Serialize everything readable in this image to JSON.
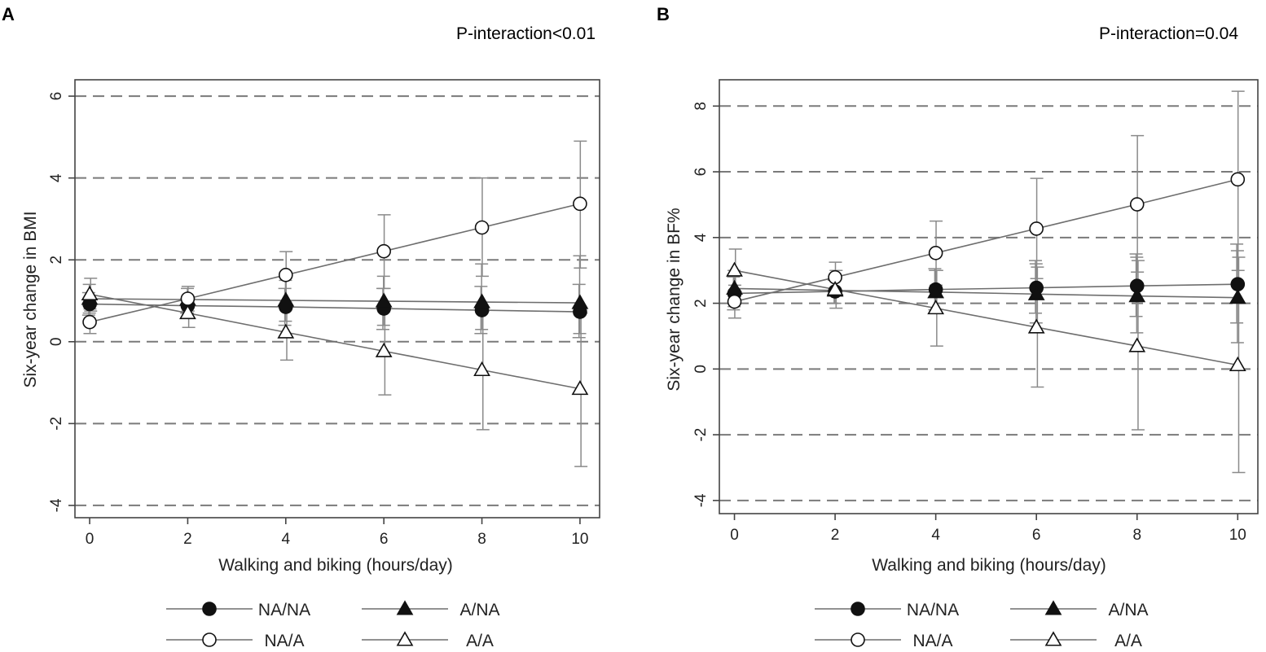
{
  "chart_data": [
    {
      "type": "line",
      "panel": "A",
      "annotation": "P-interaction<0.01",
      "xlabel": "Walking and biking (hours/day)",
      "ylabel": "Six-year change in BMI",
      "xlim": [
        -0.3,
        10.4
      ],
      "ylim": [
        -4.3,
        6.4
      ],
      "xticks": [
        0,
        2,
        4,
        6,
        8,
        10
      ],
      "yticks": [
        -4,
        -2,
        0,
        2,
        4,
        6
      ],
      "ytick_labels": [
        "-4",
        "-2",
        "0",
        "2",
        "4",
        "6"
      ],
      "x": [
        0,
        2,
        4,
        6,
        8,
        10
      ],
      "series": [
        {
          "name": "NA/NA",
          "marker": "filled-circle",
          "values": [
            0.92,
            0.88,
            0.85,
            0.81,
            0.77,
            0.73
          ],
          "lower": [
            0.65,
            0.7,
            0.4,
            0.3,
            0.2,
            0.1
          ],
          "upper": [
            1.2,
            1.05,
            1.3,
            1.3,
            1.35,
            1.4
          ]
        },
        {
          "name": "A/NA",
          "marker": "filled-triangle",
          "values": [
            1.05,
            1.03,
            1.01,
            0.99,
            0.97,
            0.95
          ],
          "lower": [
            0.7,
            0.7,
            0.5,
            0.4,
            0.3,
            0.2
          ],
          "upper": [
            1.4,
            1.3,
            1.5,
            1.6,
            1.9,
            2.1
          ]
        },
        {
          "name": "NA/A",
          "marker": "open-circle",
          "values": [
            0.48,
            1.05,
            1.63,
            2.21,
            2.79,
            3.37
          ],
          "lower": [
            0.2,
            0.75,
            1.0,
            1.3,
            1.6,
            1.8
          ],
          "upper": [
            0.8,
            1.35,
            2.2,
            3.1,
            4.0,
            4.9
          ]
        },
        {
          "name": "A/A",
          "marker": "open-triangle",
          "values": [
            1.16,
            0.7,
            0.23,
            -0.23,
            -0.69,
            -1.15
          ],
          "lower": [
            0.75,
            0.35,
            -0.45,
            -1.3,
            -2.15,
            -3.05
          ],
          "upper": [
            1.55,
            1.05,
            0.9,
            0.85,
            0.75,
            0.7
          ]
        }
      ]
    },
    {
      "type": "line",
      "panel": "B",
      "annotation": "P-interaction=0.04",
      "xlabel": "Walking and biking (hours/day)",
      "ylabel": "Six-year change in BF%",
      "xlim": [
        -0.3,
        10.4
      ],
      "ylim": [
        -4.4,
        8.8
      ],
      "xticks": [
        0,
        2,
        4,
        6,
        8,
        10
      ],
      "yticks": [
        -4,
        -2,
        0,
        2,
        4,
        6,
        8
      ],
      "ytick_labels": [
        "-4",
        "-2",
        "0",
        "2",
        "4",
        "6",
        "8"
      ],
      "x": [
        0,
        2,
        4,
        6,
        8,
        10
      ],
      "series": [
        {
          "name": "NA/NA",
          "marker": "filled-circle",
          "values": [
            2.3,
            2.36,
            2.42,
            2.47,
            2.53,
            2.58
          ],
          "lower": [
            1.8,
            2.0,
            1.8,
            1.7,
            1.6,
            1.4
          ],
          "upper": [
            2.8,
            2.7,
            3.05,
            3.3,
            3.5,
            3.8
          ]
        },
        {
          "name": "A/NA",
          "marker": "filled-triangle",
          "values": [
            2.45,
            2.39,
            2.34,
            2.28,
            2.22,
            2.17
          ],
          "lower": [
            1.9,
            2.0,
            1.7,
            1.4,
            1.1,
            0.8
          ],
          "upper": [
            3.0,
            2.8,
            3.0,
            3.2,
            3.4,
            3.6
          ]
        },
        {
          "name": "NA/A",
          "marker": "open-circle",
          "values": [
            2.05,
            2.79,
            3.53,
            4.27,
            5.01,
            5.77
          ],
          "lower": [
            1.55,
            2.3,
            2.55,
            2.75,
            2.95,
            3.0
          ],
          "upper": [
            2.55,
            3.25,
            4.5,
            5.8,
            7.1,
            8.45
          ]
        },
        {
          "name": "A/A",
          "marker": "open-triangle",
          "values": [
            3.0,
            2.42,
            1.85,
            1.27,
            0.7,
            0.12
          ],
          "lower": [
            2.35,
            1.85,
            0.7,
            -0.55,
            -1.85,
            -3.15
          ],
          "upper": [
            3.65,
            3.0,
            3.0,
            3.1,
            3.3,
            3.4
          ]
        }
      ]
    }
  ]
}
